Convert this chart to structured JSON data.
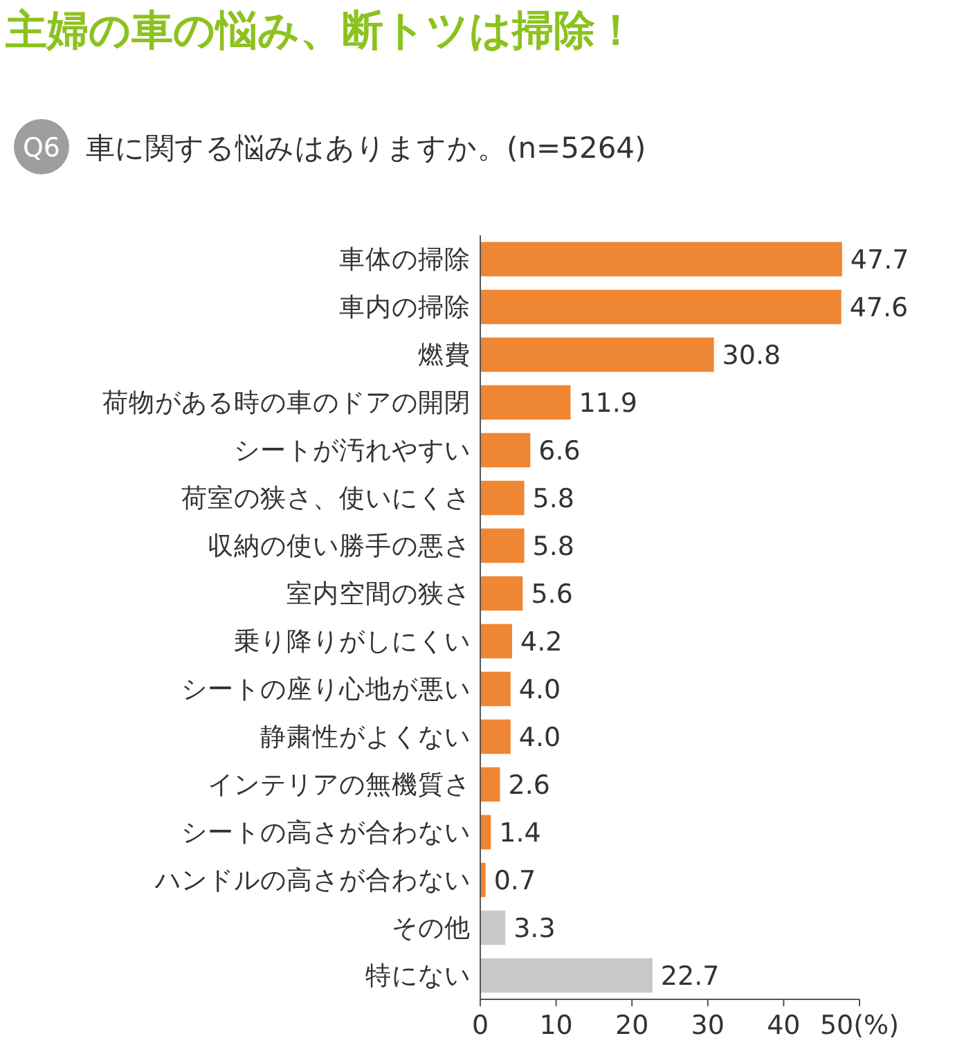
{
  "chart_data": {
    "type": "bar",
    "orientation": "horizontal",
    "title": "主婦の車の悩み、断トツは掃除！",
    "subtitle": "車に関する悩みはありますか。(n=5264)",
    "annotations": [
      "Q6"
    ],
    "categories": [
      "車体の掃除",
      "車内の掃除",
      "燃費",
      "荷物がある時の車のドアの開閉",
      "シートが汚れやすい",
      "荷室の狭さ、使いにくさ",
      "収納の使い勝手の悪さ",
      "室内空間の狭さ",
      "乗り降りがしにくい",
      "シートの座り心地が悪い",
      "静粛性がよくない",
      "インテリアの無機質さ",
      "シートの高さが合わない",
      "ハンドルの高さが合わない",
      "その他",
      "特にない"
    ],
    "values": [
      47.7,
      47.6,
      30.8,
      11.9,
      6.6,
      5.8,
      5.8,
      5.6,
      4.2,
      4.0,
      4.0,
      2.6,
      1.4,
      0.7,
      3.3,
      22.7
    ],
    "value_labels": [
      "47.7",
      "47.6",
      "30.8",
      "11.9",
      "6.6",
      "5.8",
      "5.8",
      "5.6",
      "4.2",
      "4.0",
      "4.0",
      "2.6",
      "1.4",
      "0.7",
      "3.3",
      "22.7"
    ],
    "colors": [
      "#ef8633",
      "#ef8633",
      "#ef8633",
      "#ef8633",
      "#ef8633",
      "#ef8633",
      "#ef8633",
      "#ef8633",
      "#ef8633",
      "#ef8633",
      "#ef8633",
      "#ef8633",
      "#ef8633",
      "#ef8633",
      "#c8c8c8",
      "#c8c8c8"
    ],
    "xlim": [
      0,
      50
    ],
    "xticks": [
      0,
      10,
      20,
      30,
      40,
      {
        "value": 50,
        "label": "50(%)"
      }
    ],
    "grid": false
  }
}
